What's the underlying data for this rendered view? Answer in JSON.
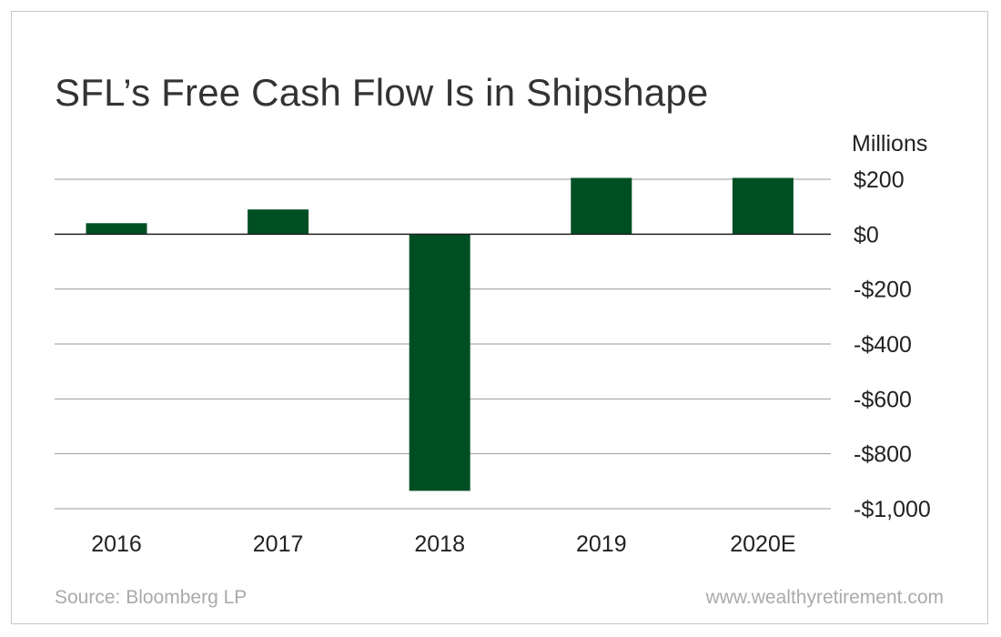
{
  "title": "SFL’s Free Cash Flow Is in Shipshape",
  "unit_label": "Millions",
  "source": "Source: Bloomberg LP",
  "website": "www.wealthyretirement.com",
  "colors": {
    "bar": "#004f24",
    "gridline": "#999999",
    "zero_line": "#222222"
  },
  "chart_data": {
    "type": "bar",
    "title": "SFL’s Free Cash Flow Is in Shipshape",
    "ylabel": "Millions",
    "categories": [
      "2016",
      "2017",
      "2018",
      "2019",
      "2020E"
    ],
    "values": [
      40,
      90,
      -935,
      205,
      205
    ],
    "ylim": [
      -1000,
      200
    ],
    "yticks": [
      200,
      0,
      -200,
      -400,
      -600,
      -800,
      -1000
    ],
    "ytick_labels": [
      "$200",
      "$0",
      "-$200",
      "-$400",
      "-$600",
      "-$800",
      "-$1,000"
    ],
    "grid": true,
    "y_axis_position": "right"
  }
}
